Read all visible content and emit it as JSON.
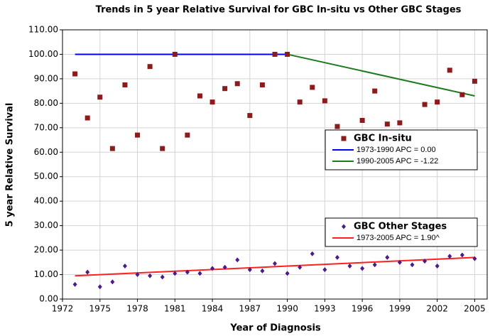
{
  "chart_data": {
    "type": "scatter",
    "title": "Trends in 5 year Relative Survival for GBC In-situ vs Other GBC Stages",
    "x_label": "Year of Diagnosis",
    "y_label": "5 year Relative Survival",
    "xlim": [
      1972,
      2006
    ],
    "ylim": [
      0,
      110
    ],
    "xticks": [
      1972,
      1975,
      1978,
      1981,
      1984,
      1987,
      1990,
      1993,
      1996,
      1999,
      2002,
      2005
    ],
    "yticks": [
      {
        "value": 0,
        "label": "0.00"
      },
      {
        "value": 10,
        "label": "10.00"
      },
      {
        "value": 20,
        "label": "20.00"
      },
      {
        "value": 30,
        "label": "30.00"
      },
      {
        "value": 40,
        "label": "40.00"
      },
      {
        "value": 50,
        "label": "50.00"
      },
      {
        "value": 60,
        "label": "60.00"
      },
      {
        "value": 70,
        "label": "70.00"
      },
      {
        "value": 80,
        "label": "80.00"
      },
      {
        "value": 90,
        "label": "90.00"
      },
      {
        "value": 100,
        "label": "100.00"
      },
      {
        "value": 110,
        "label": "110.00"
      }
    ],
    "grid": true,
    "series": [
      {
        "name": "GBC In-situ",
        "color": "#8b1c1c",
        "mode": "markers",
        "marker": "square",
        "legend": "center right",
        "x": [
          1973,
          1974,
          1975,
          1976,
          1977,
          1978,
          1979,
          1980,
          1981,
          1982,
          1983,
          1984,
          1985,
          1986,
          1987,
          1988,
          1989,
          1990,
          1991,
          1992,
          1993,
          1994,
          1996,
          1997,
          1998,
          1999,
          2001,
          2002,
          2003,
          2004,
          2005
        ],
        "values": [
          92,
          74,
          82.5,
          61.5,
          87.5,
          67,
          95,
          61.5,
          100,
          67,
          83,
          80.5,
          86,
          88,
          75,
          87.5,
          100,
          100,
          80.5,
          86.5,
          81,
          70.5,
          73,
          85,
          71.5,
          72,
          79.5,
          80.5,
          93.5,
          83.5,
          89
        ]
      },
      {
        "name": "1973-1990 APC  = 0.00",
        "color": "#0000ff",
        "mode": "line",
        "legend": "center right",
        "x": [
          1973,
          1990
        ],
        "values": [
          100,
          100
        ]
      },
      {
        "name": "1990-2005 APC  = -1.22",
        "color": "#1e7a1e",
        "mode": "line",
        "legend": "center right",
        "x": [
          1990,
          2005
        ],
        "values": [
          100,
          83
        ]
      },
      {
        "name": "GBC Other Stages",
        "color": "#4b1b8a",
        "mode": "markers",
        "marker": "diamond",
        "legend": "lower right",
        "x": [
          1973,
          1974,
          1975,
          1976,
          1977,
          1978,
          1979,
          1980,
          1981,
          1982,
          1983,
          1984,
          1985,
          1986,
          1987,
          1988,
          1989,
          1990,
          1991,
          1992,
          1993,
          1994,
          1995,
          1996,
          1997,
          1998,
          1999,
          2000,
          2001,
          2002,
          2003,
          2004,
          2005
        ],
        "values": [
          6,
          11,
          5,
          7,
          13.5,
          10,
          9.5,
          9,
          10.5,
          11,
          10.5,
          12.5,
          13,
          16,
          12,
          11.5,
          14.5,
          10.5,
          13,
          18.5,
          12,
          17,
          13.5,
          12.5,
          14,
          17,
          15,
          14,
          15.5,
          13.5,
          17.5,
          18,
          16.5
        ]
      },
      {
        "name": "1973-2005 APC  = 1.90^",
        "color": "#ff2020",
        "mode": "line",
        "legend": "lower right",
        "x": [
          1973,
          2005
        ],
        "values": [
          9.5,
          17
        ]
      }
    ]
  }
}
